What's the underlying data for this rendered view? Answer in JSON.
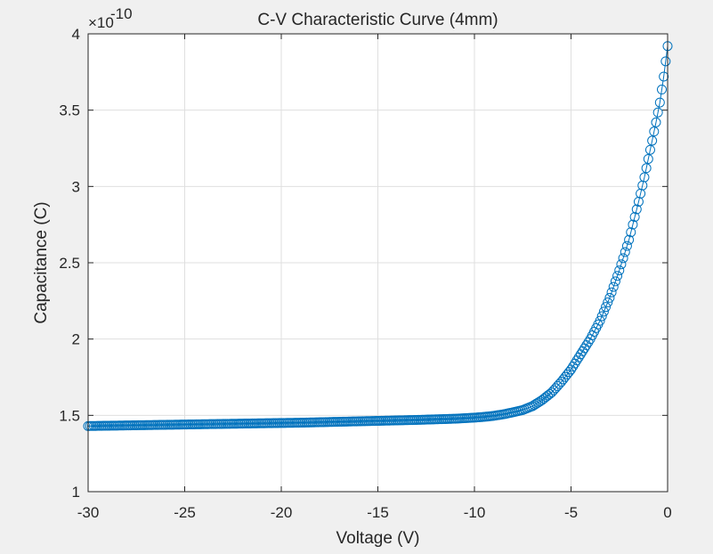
{
  "chart_data": {
    "type": "line",
    "title": "C-V Characteristic Curve (4mm)",
    "xlabel": "Voltage (V)",
    "ylabel": "Capacitance (C)",
    "xlim": [
      -30,
      0
    ],
    "ylim": [
      1e-10,
      4e-10
    ],
    "y_exponent_label": "×10",
    "y_exponent_power": "-10",
    "x_ticks": [
      -30,
      -25,
      -20,
      -15,
      -10,
      -5,
      0
    ],
    "x_tick_labels": [
      "-30",
      "-25",
      "-20",
      "-15",
      "-10",
      "-5",
      "0"
    ],
    "y_ticks": [
      1e-10,
      1.5e-10,
      2e-10,
      2.5e-10,
      3e-10,
      3.5e-10,
      4e-10
    ],
    "y_tick_labels": [
      "1",
      "1.5",
      "2",
      "2.5",
      "3",
      "3.5",
      "4"
    ],
    "grid": true,
    "legend": "none",
    "colors": {
      "series": "#0072bd",
      "grid": "#dfdfdf",
      "axes": "#262626",
      "figure_bg": "#f0f0f0",
      "plot_bg": "#ffffff"
    },
    "marker": "circle",
    "series": [
      {
        "x": [
          -30,
          -29,
          -28,
          -27,
          -26,
          -25,
          -24,
          -23,
          -22,
          -21,
          -20,
          -19,
          -18,
          -17,
          -16,
          -15,
          -14,
          -13,
          -12,
          -11,
          -10,
          -9.5,
          -9,
          -8.5,
          -8,
          -7.5,
          -7,
          -6.5,
          -6,
          -5.5,
          -5,
          -4.5,
          -4,
          -3.5,
          -3,
          -2.5,
          -2,
          -1.5,
          -1.2,
          -1,
          -0.8,
          -0.6,
          -0.4,
          -0.2,
          0
        ],
        "y": [
          1.43e-10,
          1.432e-10,
          1.434e-10,
          1.436e-10,
          1.438e-10,
          1.44e-10,
          1.442e-10,
          1.444e-10,
          1.446e-10,
          1.448e-10,
          1.45e-10,
          1.452e-10,
          1.455e-10,
          1.458e-10,
          1.461e-10,
          1.464e-10,
          1.467e-10,
          1.47e-10,
          1.474e-10,
          1.478e-10,
          1.485e-10,
          1.49e-10,
          1.497e-10,
          1.507e-10,
          1.52e-10,
          1.535e-10,
          1.56e-10,
          1.6e-10,
          1.65e-10,
          1.72e-10,
          1.8e-10,
          1.9e-10,
          2e-10,
          2.12e-10,
          2.27e-10,
          2.45e-10,
          2.65e-10,
          2.9e-10,
          3.06e-10,
          3.18e-10,
          3.3e-10,
          3.42e-10,
          3.55e-10,
          3.72e-10,
          3.92e-10
        ]
      }
    ]
  }
}
